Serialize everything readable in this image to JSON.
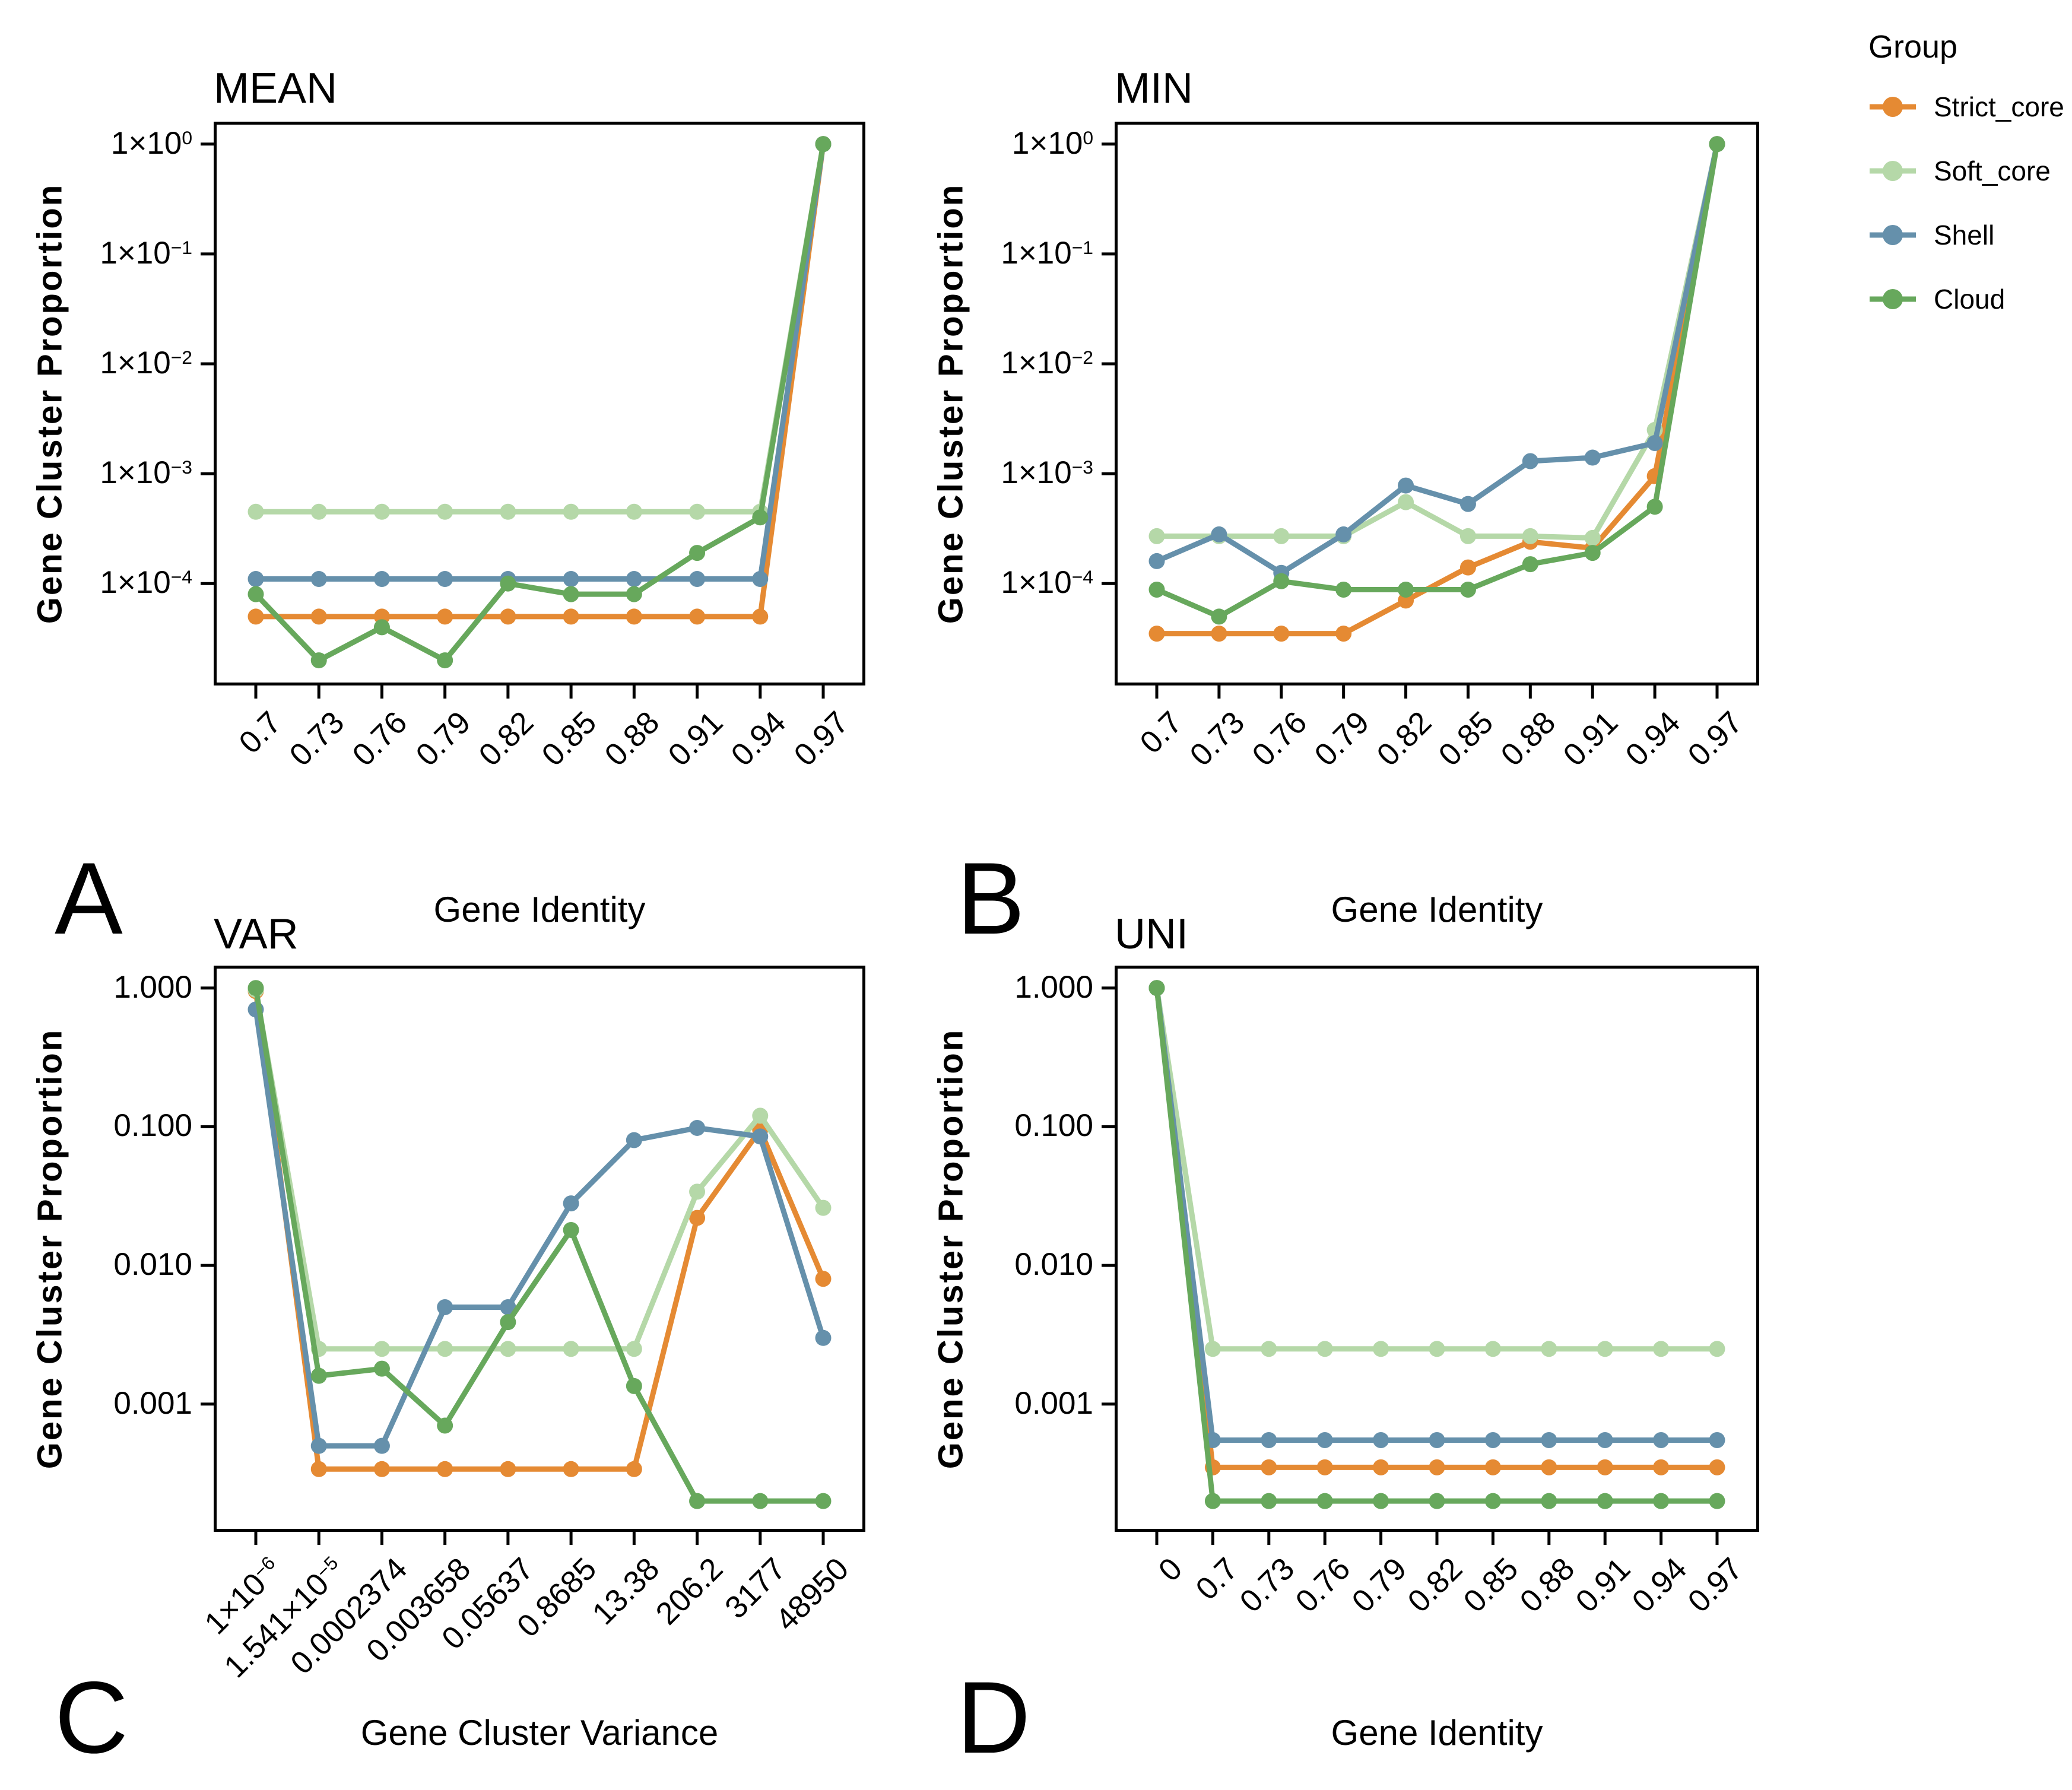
{
  "legend": {
    "title": "Group",
    "entries": [
      {
        "label": "Strict_core",
        "color": "#E58A33"
      },
      {
        "label": "Soft_core",
        "color": "#B5D8A8"
      },
      {
        "label": "Shell",
        "color": "#6590AB"
      },
      {
        "label": "Cloud",
        "color": "#67A85C"
      }
    ]
  },
  "chart_data": [
    {
      "type": "line",
      "panel_letter": "A",
      "title": "MEAN",
      "xlabel": "Gene Identity",
      "ylabel": "Gene Cluster Proportion",
      "grid": false,
      "legend_position": "none",
      "x_categories": [
        "0.7",
        "0.73",
        "0.76",
        "0.79",
        "0.82",
        "0.85",
        "0.88",
        "0.91",
        "0.94",
        "0.97"
      ],
      "y_ticks": [
        {
          "label": "1×10^0",
          "value": 1
        },
        {
          "label": "1×10^-1",
          "value": 0.1
        },
        {
          "label": "1×10^-2",
          "value": 0.01
        },
        {
          "label": "1×10^-3",
          "value": 0.001
        },
        {
          "label": "1×10^-4",
          "value": 0.0001
        }
      ],
      "ylim": [
        1.18e-05,
        1.6
      ],
      "series": [
        {
          "name": "Strict_core",
          "values": [
            5e-05,
            5e-05,
            5e-05,
            5e-05,
            5e-05,
            5e-05,
            5e-05,
            5e-05,
            5e-05,
            1
          ]
        },
        {
          "name": "Soft_core",
          "values": [
            0.00045,
            0.00045,
            0.00045,
            0.00045,
            0.00045,
            0.00045,
            0.00045,
            0.00045,
            0.00045,
            1
          ]
        },
        {
          "name": "Shell",
          "values": [
            0.00011,
            0.00011,
            0.00011,
            0.00011,
            0.00011,
            0.00011,
            0.00011,
            0.00011,
            0.00011,
            1
          ]
        },
        {
          "name": "Cloud",
          "values": [
            8e-05,
            2e-05,
            4e-05,
            2e-05,
            0.0001,
            8e-05,
            8e-05,
            0.00019,
            0.0004,
            1
          ]
        }
      ]
    },
    {
      "type": "line",
      "panel_letter": "B",
      "title": "MIN",
      "xlabel": "Gene Identity",
      "ylabel": "Gene Cluster Proportion",
      "grid": false,
      "legend_position": "none",
      "x_categories": [
        "0.7",
        "0.73",
        "0.76",
        "0.79",
        "0.82",
        "0.85",
        "0.88",
        "0.91",
        "0.94",
        "0.97"
      ],
      "y_ticks": [
        {
          "label": "1×10^0",
          "value": 1
        },
        {
          "label": "1×10^-1",
          "value": 0.1
        },
        {
          "label": "1×10^-2",
          "value": 0.01
        },
        {
          "label": "1×10^-3",
          "value": 0.001
        },
        {
          "label": "1×10^-4",
          "value": 0.0001
        }
      ],
      "ylim": [
        1.18e-05,
        1.6
      ],
      "series": [
        {
          "name": "Strict_core",
          "values": [
            3.5e-05,
            3.5e-05,
            3.5e-05,
            3.5e-05,
            7e-05,
            0.00014,
            0.00024,
            0.00021,
            0.00095,
            1
          ]
        },
        {
          "name": "Soft_core",
          "values": [
            0.00027,
            0.00027,
            0.00027,
            0.00027,
            0.00055,
            0.00027,
            0.00027,
            0.00026,
            0.0025,
            1
          ]
        },
        {
          "name": "Shell",
          "values": [
            0.00016,
            0.00028,
            0.000125,
            0.00028,
            0.00078,
            0.00053,
            0.0013,
            0.0014,
            0.0019,
            1
          ]
        },
        {
          "name": "Cloud",
          "values": [
            8.8e-05,
            5e-05,
            0.000105,
            8.8e-05,
            8.8e-05,
            8.8e-05,
            0.00015,
            0.00019,
            0.0005,
            1
          ]
        }
      ]
    },
    {
      "type": "line",
      "panel_letter": "C",
      "title": "VAR",
      "xlabel": "Gene Cluster Variance",
      "ylabel": "Gene Cluster Proportion",
      "grid": false,
      "legend_position": "none",
      "x_categories": [
        "1×10^-6",
        "1.541×10^-5",
        "0.0002374",
        "0.003658",
        "0.05637",
        "0.8685",
        "13.38",
        "206.2",
        "3177",
        "48950"
      ],
      "y_ticks": [
        {
          "label": "1.000",
          "value": 1
        },
        {
          "label": "0.100",
          "value": 0.1
        },
        {
          "label": "0.010",
          "value": 0.01
        },
        {
          "label": "0.001",
          "value": 0.001
        }
      ],
      "ylim": [
        0.00012,
        1.45
      ],
      "series": [
        {
          "name": "Strict_core",
          "values": [
            0.95,
            0.00034,
            0.00034,
            0.00034,
            0.00034,
            0.00034,
            0.00034,
            0.022,
            0.095,
            0.008
          ]
        },
        {
          "name": "Soft_core",
          "values": [
            0.97,
            0.0025,
            0.0025,
            0.0025,
            0.0025,
            0.0025,
            0.0025,
            0.034,
            0.12,
            0.026
          ]
        },
        {
          "name": "Shell",
          "values": [
            0.7,
            0.0005,
            0.0005,
            0.005,
            0.005,
            0.028,
            0.08,
            0.098,
            0.085,
            0.003
          ]
        },
        {
          "name": "Cloud",
          "values": [
            1.0,
            0.0016,
            0.0018,
            0.0007,
            0.0039,
            0.018,
            0.00135,
            0.0002,
            0.0002,
            0.0002
          ]
        }
      ]
    },
    {
      "type": "line",
      "panel_letter": "D",
      "title": "UNI",
      "xlabel": "Gene Identity",
      "ylabel": "Gene Cluster Proportion",
      "grid": false,
      "legend_position": "none",
      "x_categories": [
        "0",
        "0.7",
        "0.73",
        "0.76",
        "0.79",
        "0.82",
        "0.85",
        "0.88",
        "0.91",
        "0.94",
        "0.97"
      ],
      "y_ticks": [
        {
          "label": "1.000",
          "value": 1
        },
        {
          "label": "0.100",
          "value": 0.1
        },
        {
          "label": "0.010",
          "value": 0.01
        },
        {
          "label": "0.001",
          "value": 0.001
        }
      ],
      "ylim": [
        0.00012,
        1.45
      ],
      "series": [
        {
          "name": "Strict_core",
          "values": [
            1,
            0.00035,
            0.00035,
            0.00035,
            0.00035,
            0.00035,
            0.00035,
            0.00035,
            0.00035,
            0.00035,
            0.00035
          ]
        },
        {
          "name": "Soft_core",
          "values": [
            1,
            0.0025,
            0.0025,
            0.0025,
            0.0025,
            0.0025,
            0.0025,
            0.0025,
            0.0025,
            0.0025,
            0.0025
          ]
        },
        {
          "name": "Shell",
          "values": [
            1,
            0.00055,
            0.00055,
            0.00055,
            0.00055,
            0.00055,
            0.00055,
            0.00055,
            0.00055,
            0.00055,
            0.00055
          ]
        },
        {
          "name": "Cloud",
          "values": [
            1,
            0.0002,
            0.0002,
            0.0002,
            0.0002,
            0.0002,
            0.0002,
            0.0002,
            0.0002,
            0.0002,
            0.0002
          ]
        }
      ]
    }
  ]
}
